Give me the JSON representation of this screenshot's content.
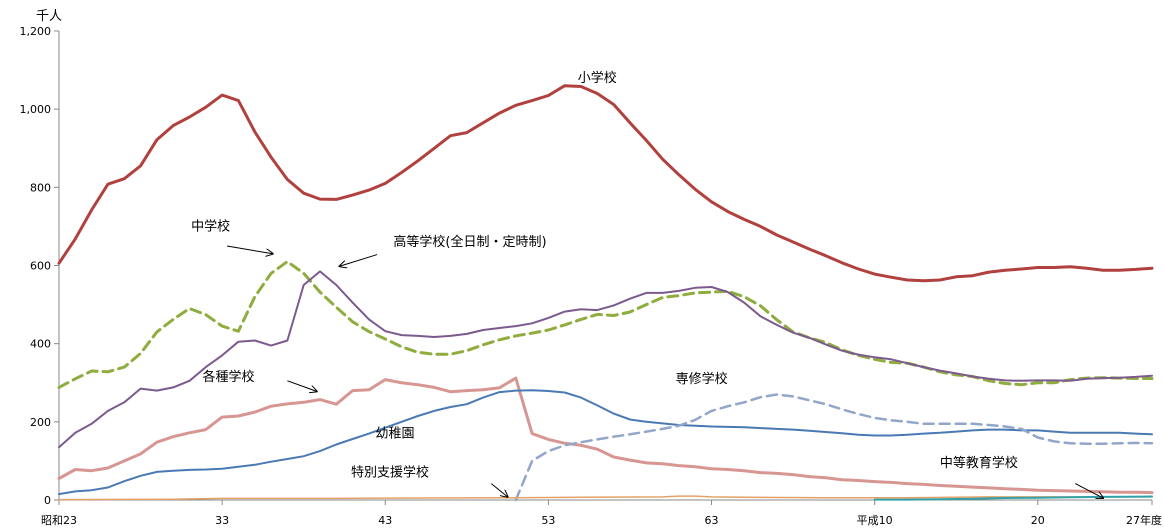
{
  "chart_data": {
    "type": "line",
    "unit_label": "千人",
    "ylim": [
      0,
      1200
    ],
    "yticks": [
      0,
      200,
      400,
      600,
      800,
      1000,
      1200
    ],
    "ytick_labels": [
      "0",
      "200",
      "400",
      "600",
      "800",
      "1,000",
      "1,200"
    ],
    "xlim": [
      1948,
      2015
    ],
    "xticks": [
      1948,
      1958,
      1968,
      1978,
      1988,
      1998,
      2008,
      2015
    ],
    "xtick_labels": [
      "昭和23",
      "33",
      "43",
      "53",
      "63",
      "平成10",
      "20",
      "27年度"
    ],
    "grid": false,
    "legend": "none",
    "series": [
      {
        "name": "小学校",
        "color": "#b0413e",
        "dash": "solid",
        "width": 3,
        "x": [
          1948,
          1949,
          1950,
          1951,
          1952,
          1953,
          1954,
          1955,
          1956,
          1957,
          1958,
          1959,
          1960,
          1961,
          1962,
          1963,
          1964,
          1965,
          1966,
          1967,
          1968,
          1969,
          1970,
          1971,
          1972,
          1973,
          1974,
          1975,
          1976,
          1977,
          1978,
          1979,
          1980,
          1981,
          1982,
          1983,
          1984,
          1985,
          1986,
          1987,
          1988,
          1989,
          1990,
          1991,
          1992,
          1993,
          1994,
          1995,
          1996,
          1997,
          1998,
          1999,
          2000,
          2001,
          2002,
          2003,
          2004,
          2005,
          2006,
          2007,
          2008,
          2009,
          2010,
          2011,
          2012,
          2013,
          2014,
          2015
        ],
        "values": [
          606,
          668,
          742,
          808,
          822,
          855,
          922,
          958,
          980,
          1005,
          1036,
          1022,
          942,
          877,
          820,
          785,
          770,
          769,
          780,
          793,
          810,
          838,
          868,
          900,
          932,
          940,
          965,
          990,
          1010,
          1022,
          1035,
          1060,
          1058,
          1040,
          1012,
          965,
          920,
          872,
          832,
          795,
          763,
          738,
          718,
          700,
          678,
          660,
          642,
          625,
          607,
          591,
          578,
          570,
          563,
          561,
          563,
          571,
          574,
          583,
          588,
          591,
          595,
          595,
          597,
          593,
          588,
          588,
          590,
          593
        ]
      },
      {
        "name": "中学校",
        "color": "#8fac3e",
        "dash": "dashed",
        "width": 3,
        "x": [
          1948,
          1949,
          1950,
          1951,
          1952,
          1953,
          1954,
          1955,
          1956,
          1957,
          1958,
          1959,
          1960,
          1961,
          1962,
          1963,
          1964,
          1965,
          1966,
          1967,
          1968,
          1969,
          1970,
          1971,
          1972,
          1973,
          1974,
          1975,
          1976,
          1977,
          1978,
          1979,
          1980,
          1981,
          1982,
          1983,
          1984,
          1985,
          1986,
          1987,
          1988,
          1989,
          1990,
          1991,
          1992,
          1993,
          1994,
          1995,
          1996,
          1997,
          1998,
          1999,
          2000,
          2001,
          2002,
          2003,
          2004,
          2005,
          2006,
          2007,
          2008,
          2009,
          2010,
          2011,
          2012,
          2013,
          2014,
          2015
        ],
        "values": [
          288,
          310,
          330,
          328,
          340,
          375,
          430,
          462,
          490,
          474,
          445,
          432,
          520,
          580,
          610,
          580,
          532,
          493,
          456,
          431,
          412,
          392,
          378,
          373,
          373,
          382,
          397,
          410,
          420,
          427,
          435,
          448,
          462,
          475,
          472,
          481,
          500,
          518,
          523,
          530,
          532,
          534,
          520,
          497,
          461,
          430,
          415,
          403,
          384,
          370,
          360,
          352,
          350,
          340,
          328,
          320,
          316,
          305,
          298,
          295,
          300,
          300,
          308,
          312,
          313,
          312,
          311,
          311
        ]
      },
      {
        "name": "高等学校(全日制・定時制)",
        "color": "#7b5a8e",
        "dash": "solid",
        "width": 2,
        "x": [
          1948,
          1949,
          1950,
          1951,
          1952,
          1953,
          1954,
          1955,
          1956,
          1957,
          1958,
          1959,
          1960,
          1961,
          1962,
          1963,
          1964,
          1965,
          1966,
          1967,
          1968,
          1969,
          1970,
          1971,
          1972,
          1973,
          1974,
          1975,
          1976,
          1977,
          1978,
          1979,
          1980,
          1981,
          1982,
          1983,
          1984,
          1985,
          1986,
          1987,
          1988,
          1989,
          1990,
          1991,
          1992,
          1993,
          1994,
          1995,
          1996,
          1997,
          1998,
          1999,
          2000,
          2001,
          2002,
          2003,
          2004,
          2005,
          2006,
          2007,
          2008,
          2009,
          2010,
          2011,
          2012,
          2013,
          2014,
          2015
        ],
        "values": [
          135,
          172,
          195,
          228,
          250,
          285,
          280,
          288,
          305,
          340,
          370,
          405,
          408,
          395,
          408,
          550,
          585,
          550,
          505,
          462,
          432,
          422,
          420,
          417,
          420,
          425,
          435,
          440,
          445,
          452,
          466,
          482,
          488,
          486,
          498,
          515,
          530,
          530,
          535,
          543,
          545,
          532,
          505,
          470,
          448,
          428,
          415,
          398,
          382,
          372,
          365,
          360,
          350,
          340,
          331,
          324,
          316,
          310,
          306,
          305,
          306,
          306,
          305,
          310,
          312,
          313,
          315,
          318
        ]
      },
      {
        "name": "各種学校",
        "color": "#d79692",
        "dash": "solid",
        "width": 3,
        "x": [
          1948,
          1949,
          1950,
          1951,
          1952,
          1953,
          1954,
          1955,
          1956,
          1957,
          1958,
          1959,
          1960,
          1961,
          1962,
          1963,
          1964,
          1965,
          1966,
          1967,
          1968,
          1969,
          1970,
          1971,
          1972,
          1973,
          1974,
          1975,
          1976,
          1977,
          1978,
          1979,
          1980,
          1981,
          1982,
          1983,
          1984,
          1985,
          1986,
          1987,
          1988,
          1989,
          1990,
          1991,
          1992,
          1993,
          1994,
          1995,
          1996,
          1997,
          1998,
          1999,
          2000,
          2001,
          2002,
          2003,
          2004,
          2005,
          2006,
          2007,
          2008,
          2009,
          2010,
          2011,
          2012,
          2013,
          2014,
          2015
        ],
        "values": [
          55,
          78,
          75,
          82,
          100,
          118,
          148,
          162,
          172,
          180,
          212,
          215,
          225,
          240,
          246,
          250,
          257,
          245,
          280,
          282,
          308,
          300,
          295,
          288,
          277,
          280,
          282,
          287,
          312,
          170,
          155,
          145,
          140,
          130,
          110,
          102,
          95,
          93,
          88,
          85,
          80,
          78,
          75,
          70,
          68,
          65,
          60,
          57,
          52,
          50,
          47,
          45,
          42,
          40,
          37,
          35,
          33,
          31,
          29,
          27,
          25,
          24,
          23,
          22,
          21,
          20,
          20,
          19
        ]
      },
      {
        "name": "幼稚園",
        "color": "#4a79b4",
        "dash": "solid",
        "width": 2,
        "x": [
          1948,
          1949,
          1950,
          1951,
          1952,
          1953,
          1954,
          1955,
          1956,
          1957,
          1958,
          1959,
          1960,
          1961,
          1962,
          1963,
          1964,
          1965,
          1966,
          1967,
          1968,
          1969,
          1970,
          1971,
          1972,
          1973,
          1974,
          1975,
          1976,
          1977,
          1978,
          1979,
          1980,
          1981,
          1982,
          1983,
          1984,
          1985,
          1986,
          1987,
          1988,
          1989,
          1990,
          1991,
          1992,
          1993,
          1994,
          1995,
          1996,
          1997,
          1998,
          1999,
          2000,
          2001,
          2002,
          2003,
          2004,
          2005,
          2006,
          2007,
          2008,
          2009,
          2010,
          2011,
          2012,
          2013,
          2014,
          2015
        ],
        "values": [
          15,
          22,
          25,
          32,
          48,
          62,
          72,
          75,
          77,
          78,
          80,
          85,
          90,
          98,
          105,
          112,
          125,
          142,
          156,
          170,
          185,
          200,
          215,
          228,
          238,
          245,
          262,
          276,
          280,
          281,
          279,
          275,
          262,
          242,
          221,
          206,
          200,
          196,
          192,
          190,
          188,
          187,
          186,
          184,
          182,
          180,
          177,
          174,
          171,
          167,
          165,
          165,
          167,
          170,
          172,
          175,
          178,
          180,
          180,
          178,
          178,
          175,
          172,
          172,
          172,
          172,
          170,
          168
        ]
      },
      {
        "name": "専修学校",
        "color": "#92a6c9",
        "dash": "dashed",
        "width": 2.5,
        "x": [
          1976,
          1977,
          1978,
          1979,
          1980,
          1981,
          1982,
          1983,
          1984,
          1985,
          1986,
          1987,
          1988,
          1989,
          1990,
          1991,
          1992,
          1993,
          1994,
          1995,
          1996,
          1997,
          1998,
          1999,
          2000,
          2001,
          2002,
          2003,
          2004,
          2005,
          2006,
          2007,
          2008,
          2009,
          2010,
          2011,
          2012,
          2013,
          2014,
          2015
        ],
        "values": [
          0,
          100,
          125,
          140,
          148,
          155,
          162,
          168,
          175,
          182,
          190,
          205,
          228,
          240,
          250,
          263,
          270,
          265,
          255,
          245,
          232,
          220,
          210,
          204,
          200,
          195,
          195,
          195,
          195,
          192,
          188,
          182,
          160,
          150,
          145,
          144,
          144,
          145,
          146,
          145
        ]
      },
      {
        "name": "特別支援学校",
        "color": "#e3a267",
        "dash": "solid",
        "width": 1.5,
        "x": [
          1948,
          1955,
          1958,
          1965,
          1970,
          1976,
          1980,
          1985,
          1986,
          1987,
          1988,
          1990,
          1995,
          2000,
          2005,
          2010,
          2015
        ],
        "values": [
          1,
          2,
          4,
          4,
          5,
          6,
          7,
          8,
          10,
          10,
          8,
          7,
          6,
          6,
          8,
          8,
          8
        ]
      },
      {
        "name": "中等教育学校",
        "color": "#31a2a9",
        "dash": "solid",
        "width": 2,
        "x": [
          1998,
          1999,
          2000,
          2002,
          2004,
          2006,
          2008,
          2010,
          2012,
          2015
        ],
        "values": [
          1,
          1,
          1,
          2,
          3,
          5,
          6,
          7,
          8,
          9
        ]
      }
    ],
    "annotations": [
      {
        "text": "小学校",
        "x": 1979.8,
        "y": 1070,
        "arrow": null
      },
      {
        "text": "中学校",
        "x": 1956.1,
        "y": 690,
        "arrow": [
          [
            1958.3,
            650
          ],
          [
            1961.1,
            630
          ]
        ]
      },
      {
        "text": "高等学校(全日制・定時制)",
        "x": 1968.5,
        "y": 650,
        "arrow": [
          [
            1967.5,
            628
          ],
          [
            1965.2,
            598
          ]
        ]
      },
      {
        "text": "各種学校",
        "x": 1956.8,
        "y": 305,
        "arrow": [
          [
            1962.0,
            305
          ],
          [
            1963.8,
            278
          ]
        ]
      },
      {
        "text": "幼稚園",
        "x": 1967.4,
        "y": 160,
        "arrow": null
      },
      {
        "text": "専修学校",
        "x": 1985.8,
        "y": 300,
        "arrow": null
      },
      {
        "text": "特別支援学校",
        "x": 1965.9,
        "y": 60,
        "arrow": [
          [
            1974.5,
            42
          ],
          [
            1975.5,
            8
          ]
        ]
      },
      {
        "text": "中等教育学校",
        "x": 2002.0,
        "y": 85,
        "arrow": [
          [
            2010.3,
            42
          ],
          [
            2012.0,
            5
          ]
        ]
      }
    ]
  }
}
